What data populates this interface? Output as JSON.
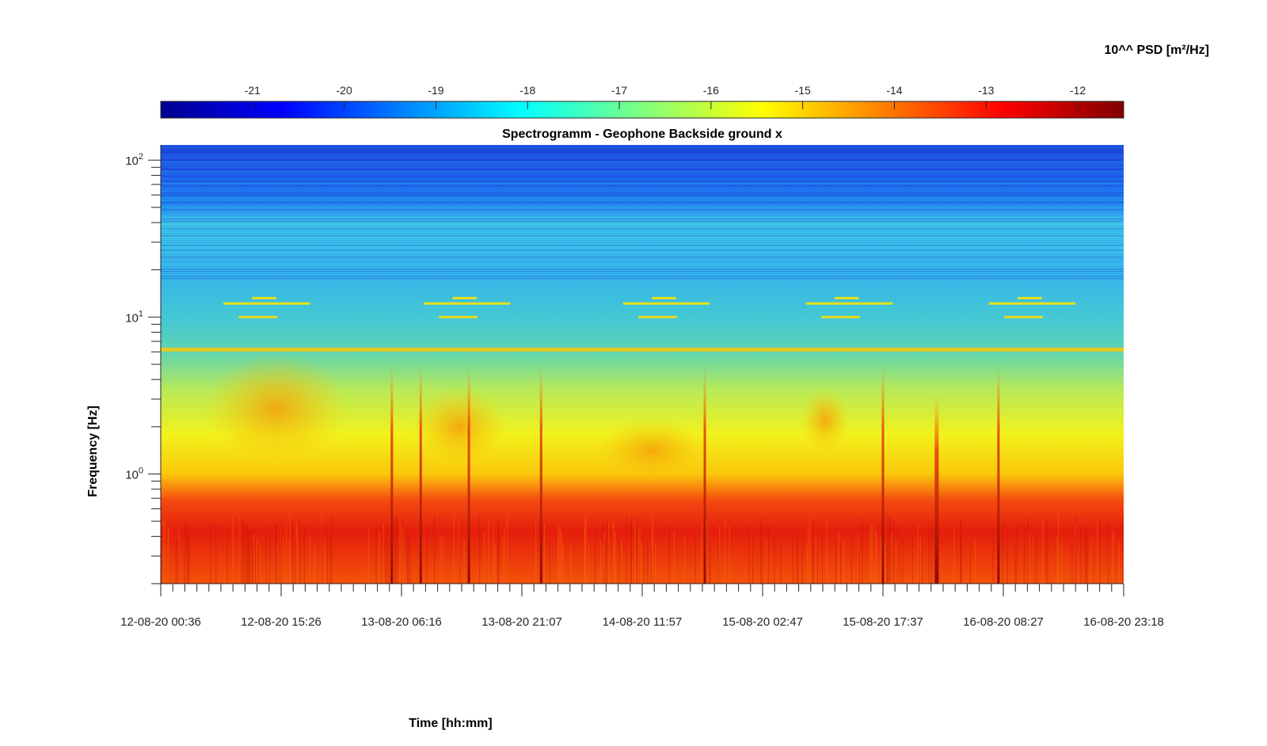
{
  "chart_data": {
    "type": "heatmap",
    "title": "Spectrogramm - Geophone Backside ground x",
    "xlabel": "Time [hh:mm]",
    "ylabel": "Frequency [Hz]",
    "y_scale": "log",
    "ylim": [
      0.2,
      125
    ],
    "x_ticks": [
      "12-08-20 00:36",
      "12-08-20 15:26",
      "13-08-20 06:16",
      "13-08-20 21:07",
      "14-08-20 11:57",
      "15-08-20 02:47",
      "15-08-20 17:37",
      "16-08-20 08:27",
      "16-08-20 23:18"
    ],
    "y_ticks": [
      {
        "base": "10",
        "exp": "0",
        "value": 1
      },
      {
        "base": "10",
        "exp": "1",
        "value": 10
      },
      {
        "base": "10",
        "exp": "2",
        "value": 100
      }
    ],
    "colorbar": {
      "title": "10^^ PSD [m²/Hz]",
      "location": "top",
      "colormap": "jet",
      "range": [
        -22,
        -11.5
      ],
      "ticks": [
        "-21",
        "-20",
        "-19",
        "-18",
        "-17",
        "-16",
        "-15",
        "-14",
        "-13",
        "-12"
      ],
      "tick_values": [
        -21,
        -20,
        -19,
        -18,
        -17,
        -16,
        -15,
        -14,
        -13,
        -12
      ]
    },
    "psd_profile": [
      {
        "freq": 120,
        "log_psd": -20.8
      },
      {
        "freq": 60,
        "log_psd": -20.3
      },
      {
        "freq": 40,
        "log_psd": -18.6
      },
      {
        "freq": 25,
        "log_psd": -18.5
      },
      {
        "freq": 15,
        "log_psd": -18.3
      },
      {
        "freq": 10,
        "log_psd": -17.9
      },
      {
        "freq": 6.2,
        "log_psd": -15.5
      },
      {
        "freq": 4,
        "log_psd": -17.2
      },
      {
        "freq": 2,
        "log_psd": -16.0
      },
      {
        "freq": 1,
        "log_psd": -15.3
      },
      {
        "freq": 0.6,
        "log_psd": -13.5
      },
      {
        "freq": 0.3,
        "log_psd": -12.8
      }
    ],
    "transient_events_x": [
      0.24,
      0.27,
      0.32,
      0.395,
      0.565,
      0.75,
      0.805,
      0.87
    ]
  }
}
